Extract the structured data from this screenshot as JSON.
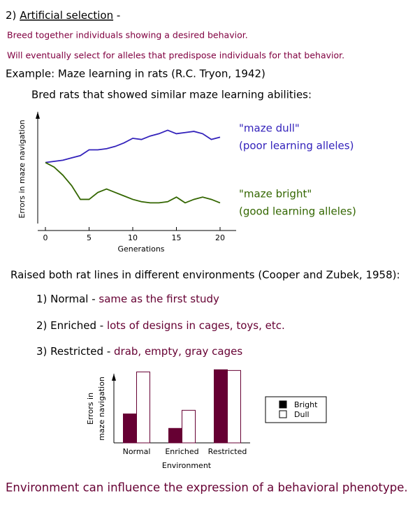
{
  "heading": {
    "number": "2)",
    "title": "Artificial selection",
    "dash": "-"
  },
  "intro": [
    "Breed together individuals showing a desired behavior.",
    "Will eventually select for alleles that predispose individuals for that behavior."
  ],
  "example": "Example: Maze learning in rats (R.C. Tryon, 1942)",
  "bred": "Bred rats that showed similar maze learning abilities:",
  "raised": "Raised both rat lines in different environments (Cooper and Zubek, 1958):",
  "environments": [
    {
      "name": "1) Normal -",
      "desc": "same as the first study"
    },
    {
      "name": "2) Enriched -",
      "desc": "lots of designs in cages, toys, etc."
    },
    {
      "name": "3) Restricted -",
      "desc": "drab, empty, gray cages"
    }
  ],
  "conclusion": "Environment can influence the expression of a behavioral phenotype.",
  "chart_data": [
    {
      "type": "line",
      "xlabel": "Generations",
      "ylabel": "Errors in maze navigation",
      "x": [
        0,
        1,
        2,
        3,
        4,
        5,
        6,
        7,
        8,
        9,
        10,
        11,
        12,
        13,
        14,
        15,
        16,
        17,
        18,
        19,
        20
      ],
      "xlim": [
        0,
        20
      ],
      "xticks": [
        0,
        5,
        10,
        15,
        20
      ],
      "ylim": [
        0,
        10
      ],
      "series": [
        {
          "name": "\"maze dull\"",
          "note": "(poor learning alleles)",
          "color": "#3322bb",
          "values": [
            5.9,
            6.0,
            6.1,
            6.3,
            6.5,
            7.0,
            7.0,
            7.1,
            7.3,
            7.6,
            8.0,
            7.9,
            8.2,
            8.4,
            8.7,
            8.4,
            8.5,
            8.6,
            8.4,
            7.9,
            8.1
          ]
        },
        {
          "name": "\"maze bright\"",
          "note": "(good learning alleles)",
          "color": "#336600",
          "values": [
            5.9,
            5.5,
            4.8,
            3.9,
            2.7,
            2.7,
            3.3,
            3.6,
            3.3,
            3.0,
            2.7,
            2.5,
            2.4,
            2.4,
            2.5,
            2.9,
            2.4,
            2.7,
            2.9,
            2.7,
            2.4
          ]
        }
      ]
    },
    {
      "type": "bar",
      "xlabel": "Environment",
      "ylabel": [
        "Errors in",
        "maze navigation"
      ],
      "categories": [
        "Normal",
        "Enriched",
        "Restricted"
      ],
      "ylim": [
        0,
        11
      ],
      "series": [
        {
          "name": "Bright",
          "color": "#660033",
          "values": [
            4.0,
            2.0,
            10.1
          ]
        },
        {
          "name": "Dull",
          "color": "#ffffff",
          "values": [
            9.8,
            4.5,
            10.0
          ]
        }
      ]
    }
  ]
}
